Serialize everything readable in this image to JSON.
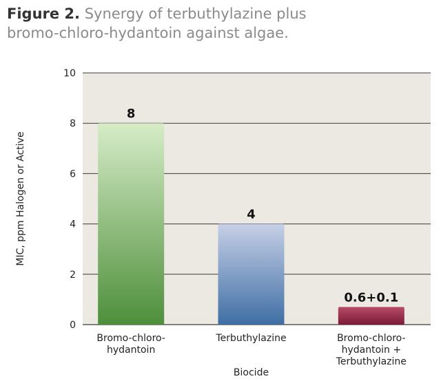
{
  "caption": {
    "lead": "Figure 2.",
    "text": " Synergy of terbuthylazine plus bromo-chloro-hydantoin against algae."
  },
  "chart_data": {
    "type": "bar",
    "categories": [
      [
        "Bromo-chloro-",
        "hydantoin"
      ],
      [
        "Terbuthylazine"
      ],
      [
        "Bromo-chloro-",
        "hydantoin +",
        "Terbuthylazine"
      ]
    ],
    "values": [
      8,
      4,
      0.7
    ],
    "data_labels": [
      "8",
      "4",
      "0.6+0.1"
    ],
    "xlabel": "Biocide",
    "ylabel": "MIC, ppm Halogen or Active",
    "ylim": [
      0,
      10
    ],
    "yticks": [
      0,
      2,
      4,
      6,
      8,
      10
    ],
    "grid": true,
    "bar_colors": [
      {
        "top": "#d6ecc8",
        "bottom": "#4e8f3b"
      },
      {
        "top": "#c6d0e6",
        "bottom": "#3f6ea4"
      },
      {
        "top": "#b84a66",
        "bottom": "#7b1c38"
      }
    ],
    "plot_background": "#ebe9e1"
  }
}
